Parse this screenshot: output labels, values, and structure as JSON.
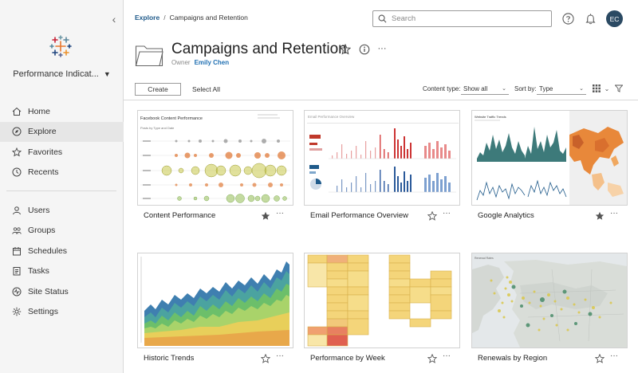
{
  "sidebar": {
    "site_name": "Performance Indicat...",
    "nav_primary": [
      {
        "label": "Home",
        "icon": "home-icon"
      },
      {
        "label": "Explore",
        "icon": "compass-icon",
        "active": true
      },
      {
        "label": "Favorites",
        "icon": "star-icon"
      },
      {
        "label": "Recents",
        "icon": "clock-icon"
      }
    ],
    "nav_secondary": [
      {
        "label": "Users",
        "icon": "user-icon"
      },
      {
        "label": "Groups",
        "icon": "users-icon"
      },
      {
        "label": "Schedules",
        "icon": "calendar-icon"
      },
      {
        "label": "Tasks",
        "icon": "tasks-icon"
      },
      {
        "label": "Site Status",
        "icon": "pulse-icon"
      },
      {
        "label": "Settings",
        "icon": "gear-icon"
      }
    ]
  },
  "header": {
    "breadcrumb": {
      "root": "Explore",
      "separator": "/",
      "current": "Campaigns and Retention"
    },
    "search_placeholder": "Search",
    "avatar_initials": "EC"
  },
  "project": {
    "title": "Campaigns and Retention",
    "owner_label": "Owner",
    "owner_name": "Emily Chen"
  },
  "toolbar": {
    "create_label": "Create",
    "select_all_label": "Select All",
    "content_type_label": "Content type:",
    "content_type_value": "Show all",
    "sort_label": "Sort by:",
    "sort_value": "Type"
  },
  "cards": [
    {
      "title": "Content Performance",
      "favorite": true,
      "thumb_heading": "Facebook Content Performance",
      "thumb_subheading": "Posts by Type and Date"
    },
    {
      "title": "Email Performance Overview",
      "favorite": false,
      "thumb_heading": "Email Performance Overview"
    },
    {
      "title": "Google Analytics",
      "favorite": true,
      "thumb_heading": "Website Traffic Trends"
    },
    {
      "title": "Historic Trends",
      "favorite": false
    },
    {
      "title": "Performance by Week",
      "favorite": false
    },
    {
      "title": "Renewals by Region",
      "favorite": false,
      "thumb_heading": "Renewal Rates"
    }
  ],
  "colors": {
    "accent": "#1f5a8a",
    "owner_link": "#1f6fb2",
    "avatar_bg": "#2b4a63",
    "sidebar_bg": "#f5f5f5",
    "active_nav_bg": "#e6e6e6"
  }
}
